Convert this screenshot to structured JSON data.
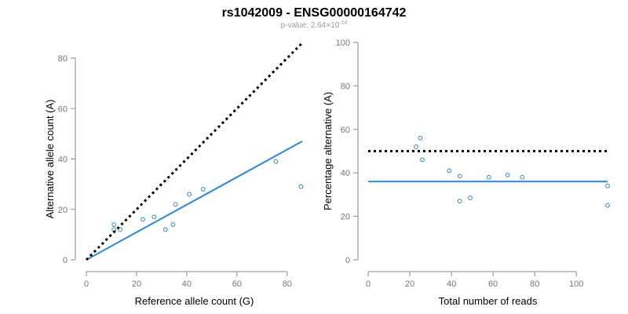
{
  "header": {
    "title": "rs1042009 - ENSG00000164742",
    "subtitle_prefix": "p-value: 2.64×10",
    "subtitle_exponent": "-14"
  },
  "colors": {
    "points": "#2b86c8",
    "fit": "#2b86e0",
    "reference": "#000000",
    "axis": "#8a8a8a",
    "ticklabel": "#777777",
    "axislabel": "#000000"
  },
  "chart_data": [
    {
      "type": "scatter",
      "title": "",
      "xlabel": "Reference allele count (G)",
      "ylabel": "Alternative allele count (A)",
      "xlim": [
        0,
        86
      ],
      "ylim": [
        0,
        80
      ],
      "xticks": [
        0,
        20,
        40,
        60,
        80
      ],
      "yticks": [
        0,
        20,
        40,
        60,
        80
      ],
      "grid": false,
      "series": [
        {
          "role": "points",
          "points": [
            {
              "x": 11,
              "y": 14
            },
            {
              "x": 11,
              "y": 12
            },
            {
              "x": 13.5,
              "y": 12
            },
            {
              "x": 22.5,
              "y": 16
            },
            {
              "x": 27,
              "y": 17
            },
            {
              "x": 31.5,
              "y": 12
            },
            {
              "x": 34.5,
              "y": 14
            },
            {
              "x": 35.5,
              "y": 22
            },
            {
              "x": 41,
              "y": 26
            },
            {
              "x": 46.5,
              "y": 28
            },
            {
              "x": 75.5,
              "y": 39
            },
            {
              "x": 85.5,
              "y": 29
            }
          ]
        },
        {
          "role": "fit",
          "points": [
            {
              "x": 0,
              "y": 0
            },
            {
              "x": 86,
              "y": 47
            }
          ]
        },
        {
          "role": "reference",
          "points": [
            {
              "x": 0,
              "y": 0
            },
            {
              "x": 86,
              "y": 86
            }
          ]
        }
      ]
    },
    {
      "type": "scatter",
      "title": "",
      "xlabel": "Total number of reads",
      "ylabel": "Percentage alternative (A)",
      "xlim": [
        0,
        115
      ],
      "ylim": [
        0,
        100
      ],
      "xticks": [
        0,
        20,
        40,
        60,
        80,
        100
      ],
      "yticks": [
        0,
        20,
        40,
        60,
        80,
        100
      ],
      "grid": false,
      "series": [
        {
          "role": "points",
          "points": [
            {
              "x": 23,
              "y": 52
            },
            {
              "x": 25,
              "y": 56
            },
            {
              "x": 26,
              "y": 46
            },
            {
              "x": 39,
              "y": 41
            },
            {
              "x": 44,
              "y": 38.5
            },
            {
              "x": 44,
              "y": 27
            },
            {
              "x": 49,
              "y": 28.5
            },
            {
              "x": 58,
              "y": 38
            },
            {
              "x": 67,
              "y": 39
            },
            {
              "x": 74,
              "y": 38
            },
            {
              "x": 115,
              "y": 34
            },
            {
              "x": 115,
              "y": 25
            }
          ]
        },
        {
          "role": "fit",
          "points": [
            {
              "x": 0,
              "y": 36
            },
            {
              "x": 115,
              "y": 36
            }
          ]
        },
        {
          "role": "reference",
          "points": [
            {
              "x": 0,
              "y": 50
            },
            {
              "x": 115,
              "y": 50
            }
          ]
        }
      ]
    }
  ]
}
